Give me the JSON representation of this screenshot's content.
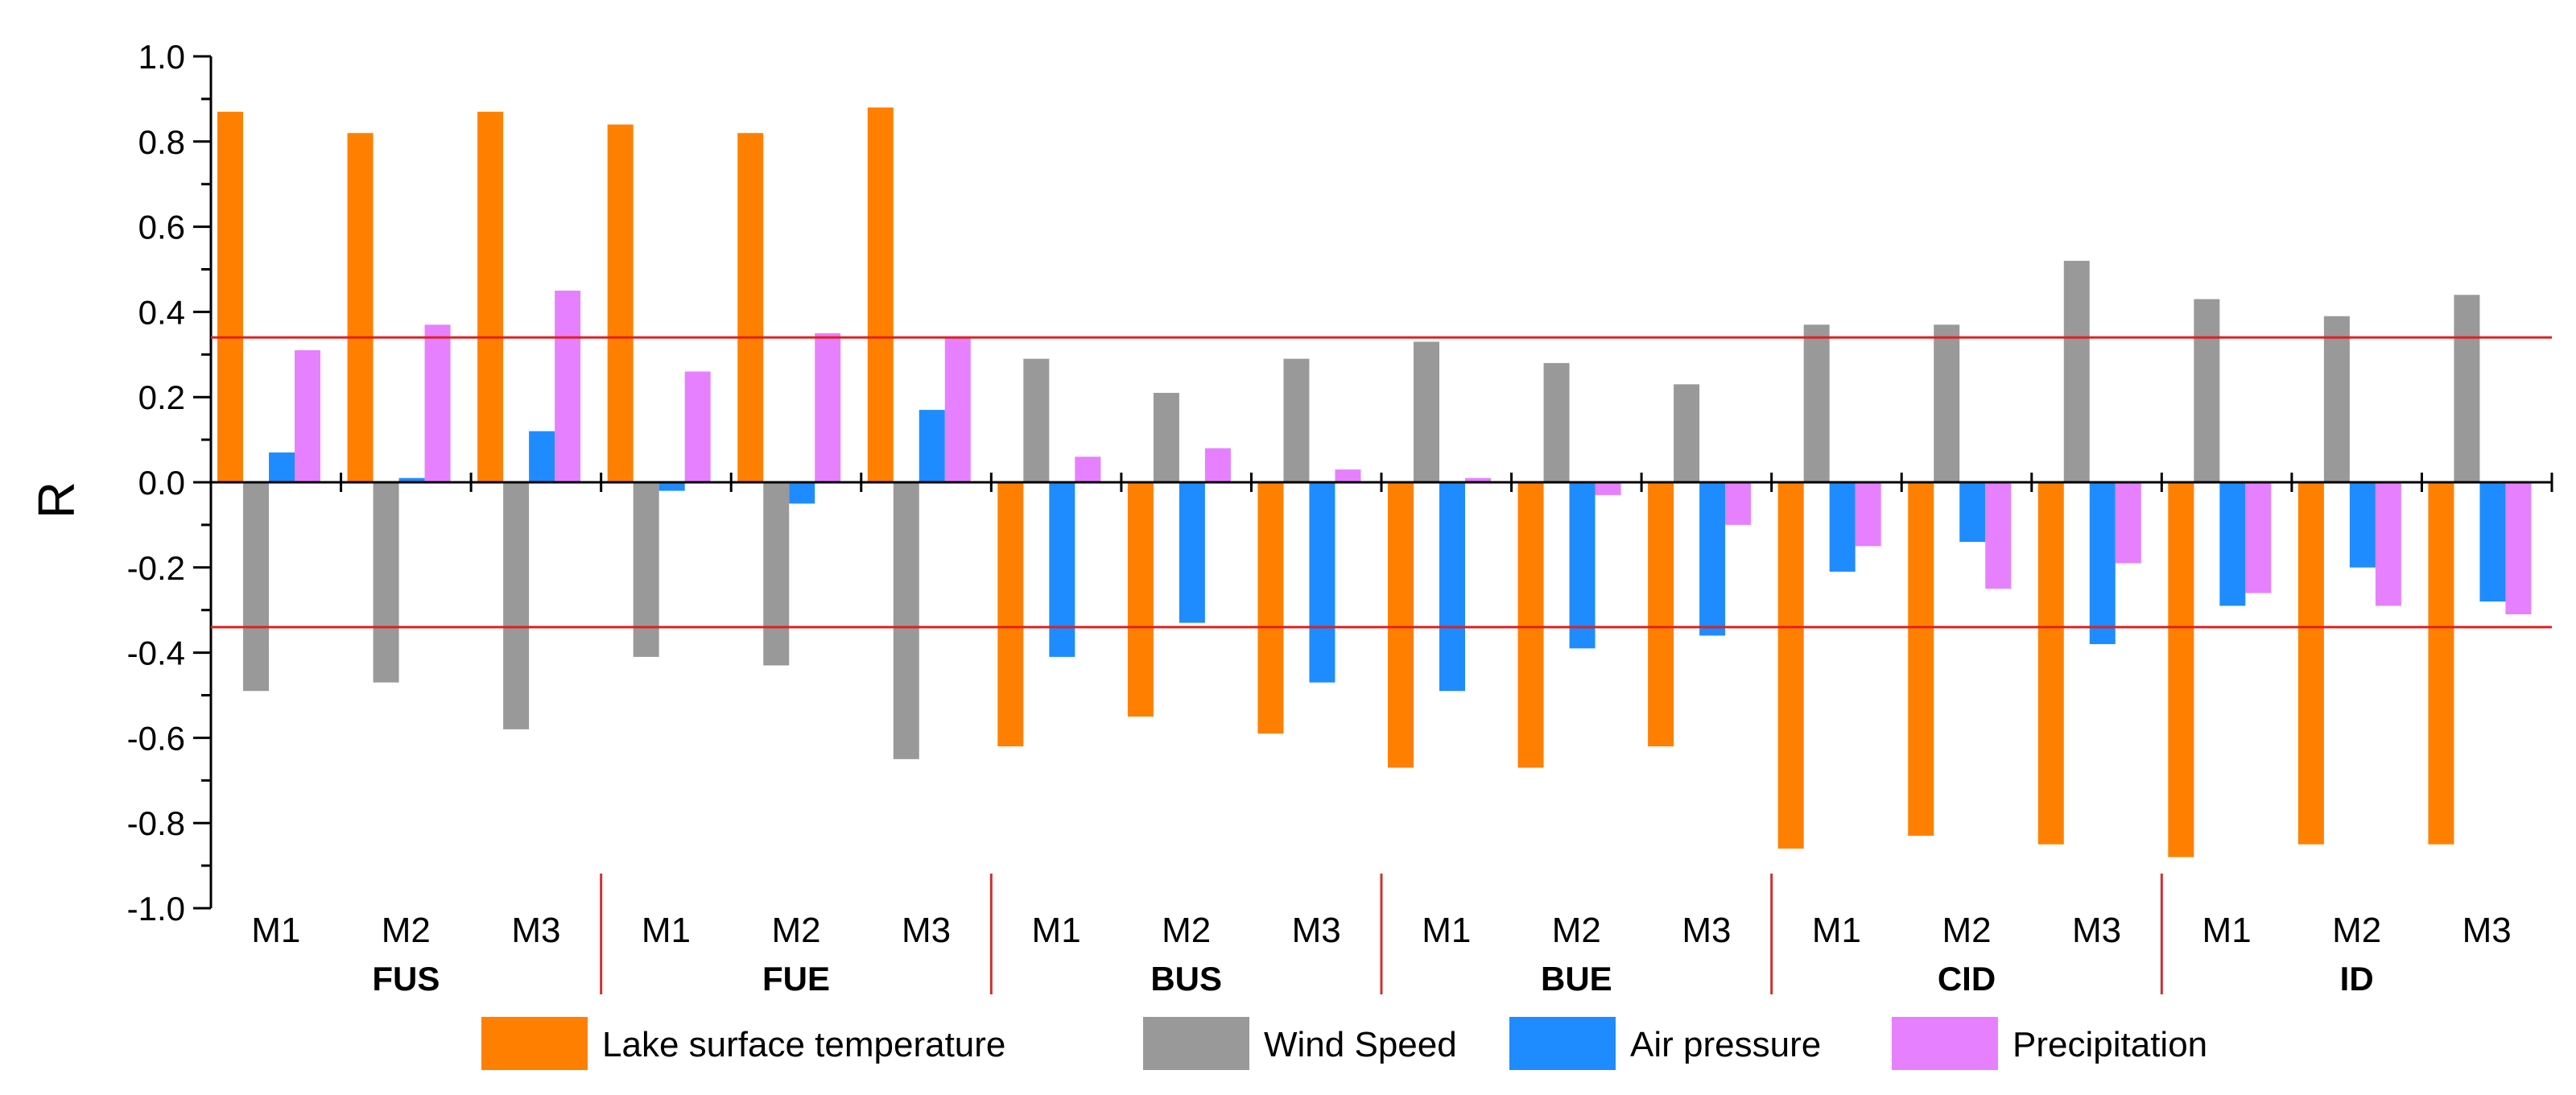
{
  "chart_data": {
    "type": "bar",
    "ylabel": "R",
    "xlabel": "",
    "ylim": [
      -1.0,
      1.0
    ],
    "yticks": [
      "1.0",
      "0.8",
      "0.6",
      "0.4",
      "0.2",
      "0.0",
      "-0.2",
      "-0.4",
      "-0.6",
      "-0.8",
      "-1.0"
    ],
    "ytick_values": [
      1.0,
      0.8,
      0.6,
      0.4,
      0.2,
      0.0,
      -0.2,
      -0.4,
      -0.6,
      -0.8,
      -1.0
    ],
    "reference_lines": [
      0.34,
      -0.34
    ],
    "groups": [
      {
        "name": "FUS",
        "categories": [
          "M1",
          "M2",
          "M3"
        ]
      },
      {
        "name": "FUE",
        "categories": [
          "M1",
          "M2",
          "M3"
        ]
      },
      {
        "name": "BUS",
        "categories": [
          "M1",
          "M2",
          "M3"
        ]
      },
      {
        "name": "BUE",
        "categories": [
          "M1",
          "M2",
          "M3"
        ]
      },
      {
        "name": "CID",
        "categories": [
          "M1",
          "M2",
          "M3"
        ]
      },
      {
        "name": "ID",
        "categories": [
          "M1",
          "M2",
          "M3"
        ]
      }
    ],
    "series": [
      {
        "name": "Lake surface temperature",
        "color": "#FF8000",
        "values": [
          0.87,
          0.82,
          0.87,
          0.84,
          0.82,
          0.88,
          -0.62,
          -0.55,
          -0.59,
          -0.67,
          -0.67,
          -0.62,
          -0.86,
          -0.83,
          -0.85,
          -0.88,
          -0.85,
          -0.85
        ]
      },
      {
        "name": "Wind Speed",
        "color": "#999999",
        "values": [
          -0.49,
          -0.47,
          -0.58,
          -0.41,
          -0.43,
          -0.65,
          0.29,
          0.21,
          0.29,
          0.33,
          0.28,
          0.23,
          0.37,
          0.37,
          0.52,
          0.43,
          0.39,
          0.44
        ]
      },
      {
        "name": "Air pressure",
        "color": "#1E8CFF",
        "values": [
          0.07,
          0.01,
          0.12,
          -0.02,
          -0.05,
          0.17,
          -0.41,
          -0.33,
          -0.47,
          -0.49,
          -0.39,
          -0.36,
          -0.21,
          -0.14,
          -0.38,
          -0.29,
          -0.2,
          -0.28
        ]
      },
      {
        "name": "Precipitation",
        "color": "#E680FF",
        "values": [
          0.31,
          0.37,
          0.45,
          0.26,
          0.35,
          0.34,
          0.06,
          0.08,
          0.03,
          0.01,
          -0.03,
          -0.1,
          -0.15,
          -0.25,
          -0.19,
          -0.26,
          -0.29,
          -0.31
        ]
      }
    ],
    "grid": false,
    "legend": "bottom"
  }
}
